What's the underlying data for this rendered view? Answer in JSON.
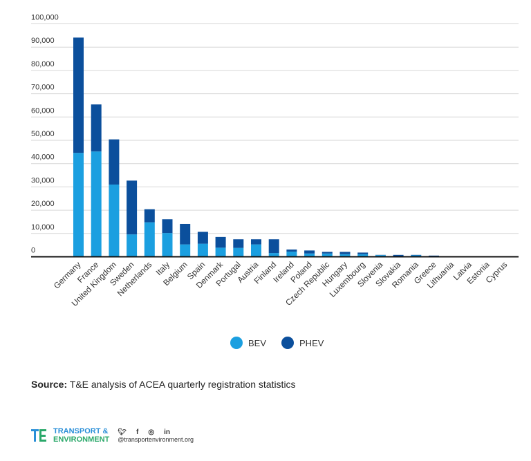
{
  "chart_data": {
    "type": "bar",
    "stacked": true,
    "title": "",
    "xlabel": "",
    "ylabel": "",
    "ylim": [
      0,
      100000
    ],
    "yticks": [
      0,
      10000,
      20000,
      30000,
      40000,
      50000,
      60000,
      70000,
      80000,
      90000,
      100000
    ],
    "ytick_labels": [
      "0",
      "10,000",
      "20,000",
      "30,000",
      "40,000",
      "50,000",
      "60,000",
      "70,000",
      "80,000",
      "90,000",
      "100,000"
    ],
    "grid": true,
    "legend_position": "bottom-center",
    "categories": [
      "Germany",
      "France",
      "United Kingdom",
      "Sweden",
      "Netherlands",
      "Italy",
      "Belgium",
      "Spain",
      "Denmark",
      "Portugal",
      "Austria",
      "Finland",
      "Ireland",
      "Poland",
      "Czech Republic",
      "Hungary",
      "Luxembourg",
      "Slovenia",
      "Slovakia",
      "Romania",
      "Greece",
      "Lithuania",
      "Latvia",
      "Estonia",
      "Cyprus"
    ],
    "series": [
      {
        "name": "BEV",
        "color": "#1b9fe0",
        "values": [
          44600,
          45200,
          31000,
          9600,
          14800,
          10200,
          5300,
          5600,
          3900,
          3800,
          5300,
          1600,
          2200,
          1400,
          1400,
          1100,
          1100,
          700,
          300,
          600,
          100,
          50,
          30,
          30,
          20
        ]
      },
      {
        "name": "PHEV",
        "color": "#0b4f9c",
        "values": [
          49500,
          20200,
          19400,
          23100,
          5600,
          5900,
          8800,
          5100,
          4600,
          3700,
          2200,
          5900,
          900,
          1300,
          700,
          1000,
          700,
          100,
          500,
          200,
          400,
          100,
          50,
          40,
          30
        ]
      }
    ]
  },
  "legend": {
    "bev": "BEV",
    "phev": "PHEV"
  },
  "source": {
    "label": "Source:",
    "text": " T&E analysis of ACEA quarterly registration statistics"
  },
  "footer": {
    "line1": "TRANSPORT &",
    "line2": "ENVIRONMENT",
    "handle": "@transportenvironment.org"
  }
}
